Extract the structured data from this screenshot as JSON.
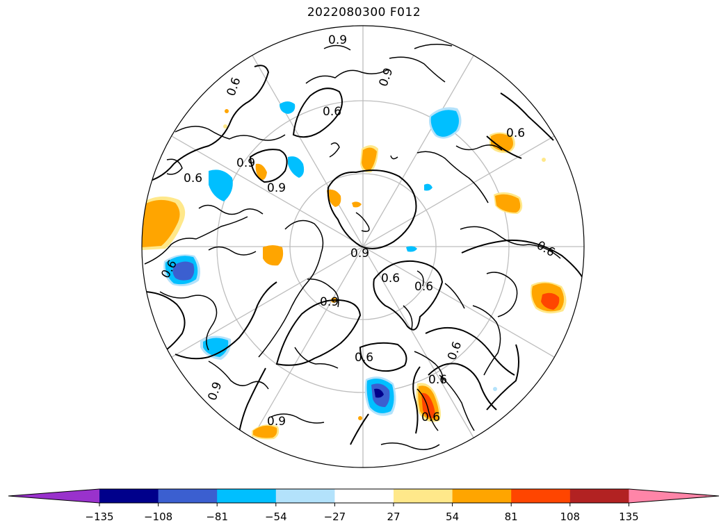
{
  "title": "2022080300 F012",
  "map": {
    "projection": "north-polar-stereographic",
    "contour_labels": [
      "0.9",
      "0.6",
      "0.9",
      "0.6",
      "0.9",
      "0.6",
      "0.9",
      "0.6",
      "0.6",
      "0.6",
      "0.9",
      "0.6",
      "0.9",
      "0.6",
      "0.6",
      "0.6",
      "0.9",
      "0.6",
      "0.9",
      "0.6"
    ],
    "shade_colors": {
      "neg_light": "#b3e2fb",
      "neg_mid": "#00bfff",
      "neg_strong": "#3b5fd0",
      "neg_xstrong": "#00008b",
      "pos_light": "#ffe88a",
      "pos_mid": "#ffa500",
      "pos_strong": "#ff4500",
      "pos_xstrong": "#b22222"
    }
  },
  "colorbar": {
    "ticks": [
      "−135",
      "−108",
      "−81",
      "−54",
      "−27",
      "27",
      "54",
      "81",
      "108",
      "135"
    ],
    "colors": [
      "#9932cc",
      "#00008b",
      "#3b5fd0",
      "#00bfff",
      "#b3e2fb",
      "#ffffff",
      "#ffe88a",
      "#ffa500",
      "#ff4500",
      "#b22222",
      "#ff85a8"
    ]
  }
}
